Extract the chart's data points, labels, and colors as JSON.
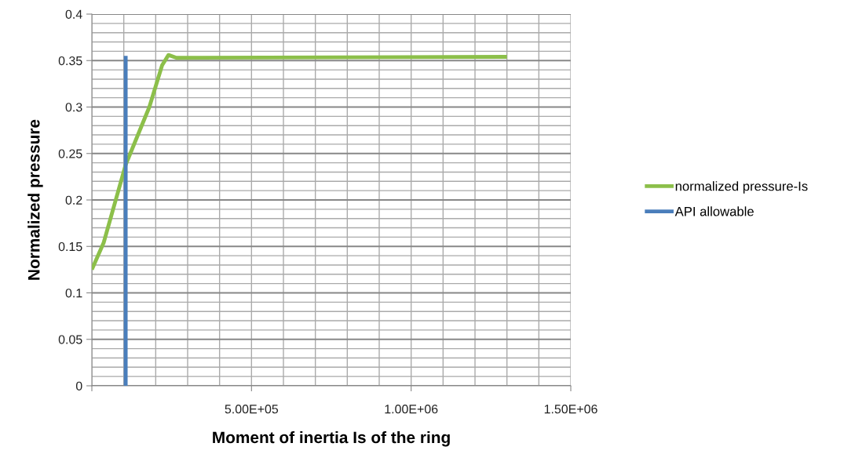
{
  "chart_data": {
    "type": "line",
    "xlabel": "Moment of inertia Is of the ring",
    "ylabel": "Normalized pressure",
    "series": [
      {
        "name": "normalized pressure-Is",
        "color": "#8cbf4a",
        "x": [
          0,
          37000,
          106000,
          180000,
          220000,
          240000,
          265000,
          1300000
        ],
        "values": [
          0.125,
          0.154,
          0.238,
          0.3,
          0.345,
          0.356,
          0.353,
          0.354
        ]
      },
      {
        "name": "API allowable",
        "color": "#4a7ebb",
        "x": [
          106000,
          106000
        ],
        "values": [
          0,
          0.355
        ]
      }
    ],
    "xlim": [
      0,
      1500000
    ],
    "xticks": [
      {
        "value": 0,
        "label": null
      },
      {
        "value": 500000,
        "label": "5.00E+05"
      },
      {
        "value": 1000000,
        "label": "1.00E+06"
      },
      {
        "value": 1500000,
        "label": "1.50E+06"
      }
    ],
    "ylim": [
      0,
      0.4
    ],
    "yticks": [
      0,
      0.05,
      0.1,
      0.15,
      0.2,
      0.25,
      0.3,
      0.35,
      0.4
    ],
    "grid": true,
    "legend": "right",
    "marker": "none",
    "line_style": "solid"
  }
}
